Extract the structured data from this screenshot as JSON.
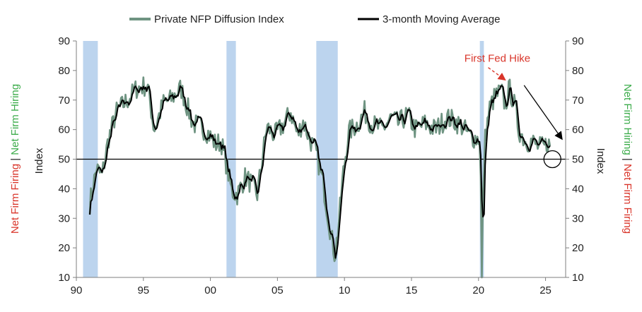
{
  "chart_data": {
    "type": "line",
    "legend": {
      "placement": "top",
      "entries": [
        {
          "label": "Private NFP Diffusion Index",
          "color": "#6f9482"
        },
        {
          "label": "3-month Moving Average",
          "color": "#000000"
        }
      ]
    },
    "x_axis": {
      "range": [
        1990,
        2026.5
      ],
      "tick_labels": [
        "90",
        "95",
        "00",
        "05",
        "10",
        "15",
        "20",
        "25"
      ],
      "tick_values": [
        1990,
        1995,
        2000,
        2005,
        2010,
        2015,
        2020,
        2025
      ]
    },
    "y_axis": {
      "label": "Index",
      "range": [
        10,
        90
      ],
      "ticks": [
        10,
        20,
        30,
        40,
        50,
        60,
        70,
        80,
        90
      ]
    },
    "y_axis_right": {
      "label": "Index",
      "range": [
        10,
        90
      ],
      "ticks": [
        10,
        20,
        30,
        40,
        50,
        60,
        70,
        80,
        90
      ]
    },
    "left_side_label": {
      "negative": "Net Firm Firing",
      "separator": " | ",
      "positive": "Net Firm Hiring"
    },
    "right_side_label": {
      "positive": "Net Firm Hiring",
      "separator": " | ",
      "negative": "Net Firm Firing"
    },
    "reference_line": 50,
    "recessions": [
      [
        1990.5,
        1991.6
      ],
      [
        2001.2,
        2001.9
      ],
      [
        2007.9,
        2009.5
      ],
      [
        2020.1,
        2020.4
      ]
    ],
    "annotation": {
      "text": "First Fed Hike",
      "x": 2022.2,
      "y": 78,
      "color": "#d9352a"
    },
    "highlight_circle": {
      "x": 2025.3,
      "y": 50
    },
    "trend_arrow": {
      "from": [
        2023.4,
        75
      ],
      "to": [
        2026.2,
        57
      ]
    },
    "colors": {
      "recession": "#bcd4ee",
      "raw": "#6f9482",
      "ma": "#000000",
      "hiring": "#3dac4b",
      "firing": "#d9352a"
    },
    "anchors": [
      [
        1991.0,
        35
      ],
      [
        1991.5,
        47
      ],
      [
        1991.9,
        44
      ],
      [
        1992.4,
        57
      ],
      [
        1993.0,
        66
      ],
      [
        1994.0,
        71
      ],
      [
        1994.5,
        74
      ],
      [
        1995.3,
        75
      ],
      [
        1995.8,
        60
      ],
      [
        1996.5,
        69
      ],
      [
        1997.0,
        70
      ],
      [
        1997.8,
        74
      ],
      [
        1998.4,
        66
      ],
      [
        1998.7,
        62
      ],
      [
        1999.3,
        61
      ],
      [
        1999.8,
        59
      ],
      [
        2000.4,
        55
      ],
      [
        2000.8,
        56
      ],
      [
        2001.2,
        48
      ],
      [
        2001.6,
        39
      ],
      [
        2002.0,
        38
      ],
      [
        2002.6,
        44
      ],
      [
        2003.0,
        42
      ],
      [
        2003.5,
        38
      ],
      [
        2003.8,
        48
      ],
      [
        2004.2,
        61
      ],
      [
        2004.8,
        58
      ],
      [
        2005.5,
        62
      ],
      [
        2006.0,
        66
      ],
      [
        2006.5,
        58
      ],
      [
        2006.9,
        63
      ],
      [
        2007.4,
        57
      ],
      [
        2007.9,
        52
      ],
      [
        2008.4,
        42
      ],
      [
        2008.9,
        27
      ],
      [
        2009.3,
        17
      ],
      [
        2009.6,
        30
      ],
      [
        2009.9,
        45
      ],
      [
        2010.3,
        59
      ],
      [
        2011.0,
        62
      ],
      [
        2011.5,
        66
      ],
      [
        2012.0,
        62
      ],
      [
        2012.8,
        60
      ],
      [
        2013.5,
        64
      ],
      [
        2014.0,
        62
      ],
      [
        2014.7,
        65
      ],
      [
        2015.3,
        60
      ],
      [
        2016.0,
        62
      ],
      [
        2016.8,
        60
      ],
      [
        2017.6,
        64
      ],
      [
        2018.2,
        63
      ],
      [
        2018.8,
        61
      ],
      [
        2019.3,
        58
      ],
      [
        2019.8,
        57
      ],
      [
        2020.1,
        57
      ],
      [
        2020.25,
        27
      ],
      [
        2020.5,
        57
      ],
      [
        2020.8,
        67
      ],
      [
        2021.2,
        71
      ],
      [
        2021.7,
        73
      ],
      [
        2022.0,
        68
      ],
      [
        2022.3,
        74
      ],
      [
        2022.7,
        68
      ],
      [
        2023.0,
        60
      ],
      [
        2023.5,
        56
      ],
      [
        2024.0,
        56
      ],
      [
        2024.5,
        54
      ],
      [
        2024.9,
        54
      ],
      [
        2025.2,
        56
      ],
      [
        2025.4,
        52
      ]
    ]
  }
}
